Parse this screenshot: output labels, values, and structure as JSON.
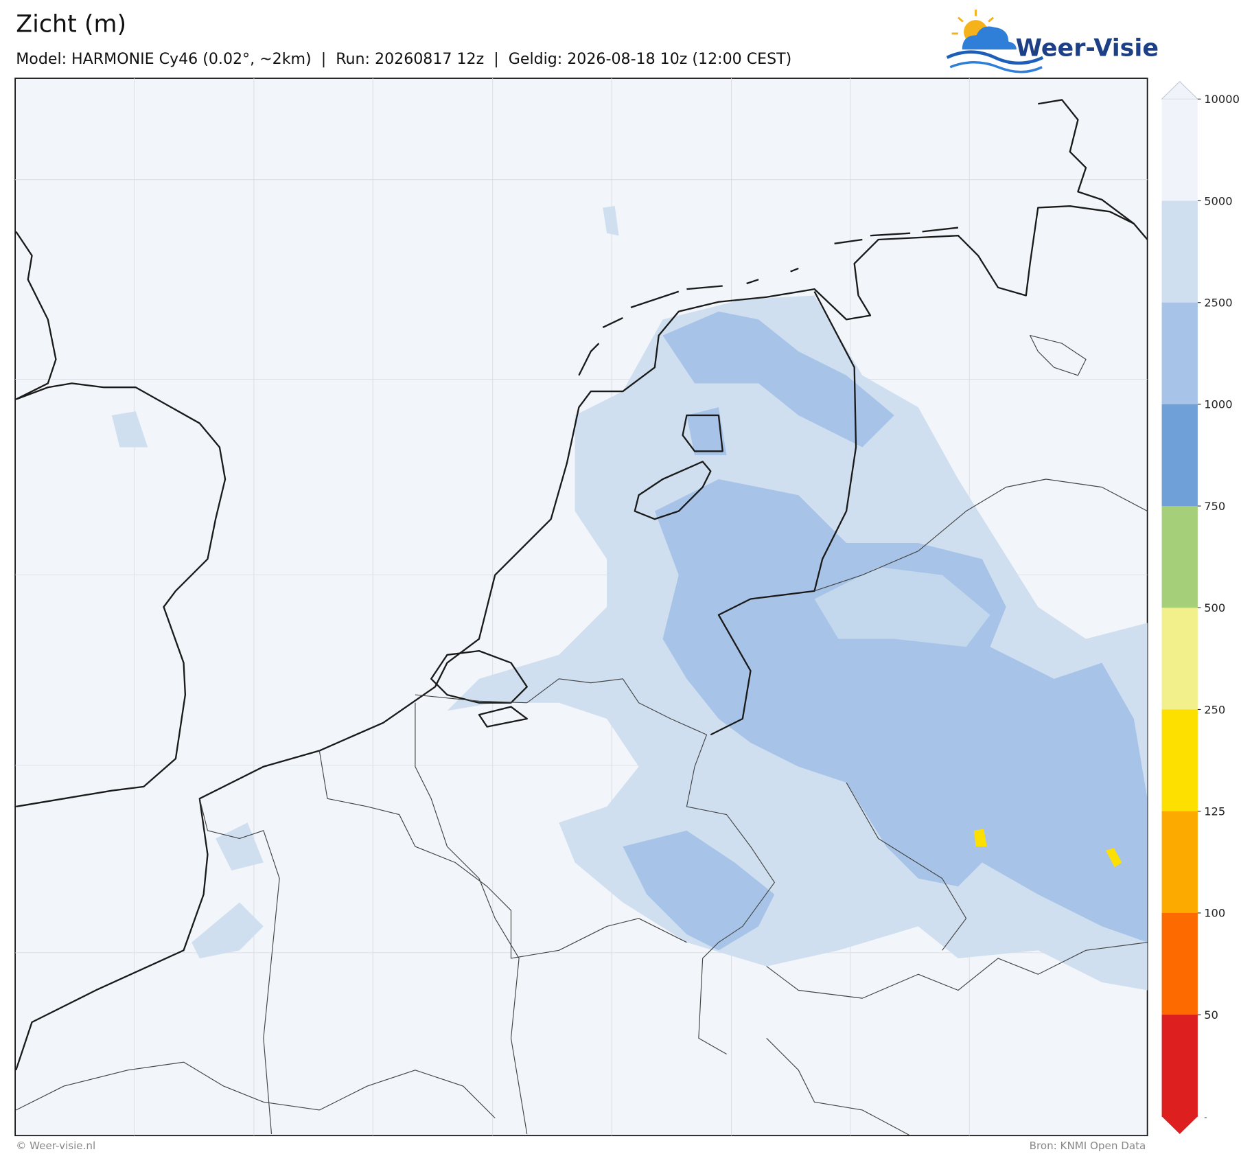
{
  "header": {
    "title": "Zicht (m)",
    "subtitle": "Model: HARMONIE Cy46 (0.02°, ~2km)  |  Run: 20260817 12z  |  Geldig: 2026-08-18 10z (12:00 CEST)"
  },
  "logo": {
    "text": "Weer-Visie"
  },
  "colorbar": {
    "ticks": [
      10000,
      5000,
      2500,
      1000,
      750,
      500,
      250,
      125,
      100,
      50
    ],
    "bottom_label": "-",
    "colors": [
      "#f0f4fa",
      "#cfdff0",
      "#a7c4e8",
      "#6fa0d8",
      "#a6cf7a",
      "#f2f08a",
      "#fde000",
      "#fdaa00",
      "#fd6a00",
      "#dd1f1f"
    ]
  },
  "footer": {
    "left": "© Weer-visie.nl",
    "right": "Bron: KNMI Open Data"
  }
}
